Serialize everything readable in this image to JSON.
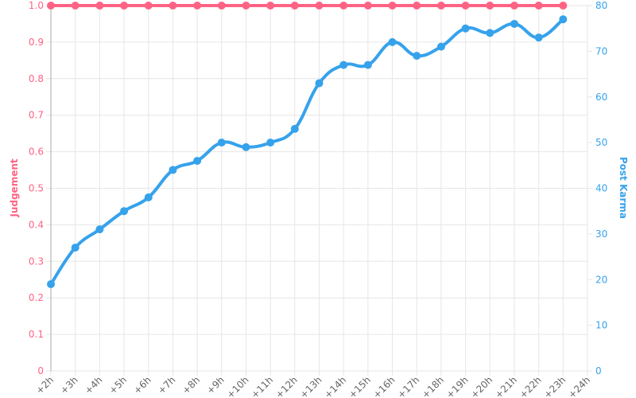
{
  "chart_data": {
    "type": "line",
    "categories": [
      "+2h",
      "+3h",
      "+4h",
      "+5h",
      "+6h",
      "+7h",
      "+8h",
      "+9h",
      "+10h",
      "+11h",
      "+12h",
      "+13h",
      "+14h",
      "+15h",
      "+16h",
      "+17h",
      "+18h",
      "+19h",
      "+20h",
      "+21h",
      "+22h",
      "+23h",
      "+24h"
    ],
    "y_label": "Judgement",
    "y2_label": "Post Karma",
    "series": [
      {
        "name": "Judgement",
        "color": "#ff6384",
        "values": [
          1,
          1,
          1,
          1,
          1,
          1,
          1,
          1,
          1,
          1,
          1,
          1,
          1,
          1,
          1,
          1,
          1,
          1,
          1,
          1,
          1,
          1,
          null
        ]
      },
      {
        "name": "Post Karma",
        "color": "#36a2eb",
        "axis": "y2",
        "values": [
          19,
          27,
          31,
          35,
          38,
          44,
          46,
          50,
          49,
          50,
          53,
          63,
          67,
          67,
          72,
          69,
          71,
          75,
          74,
          76,
          73,
          77,
          null
        ]
      }
    ],
    "ylim": [
      0,
      1
    ],
    "yticks": [
      0,
      0.1,
      0.2,
      0.3,
      0.4,
      0.5,
      0.6,
      0.7,
      0.8,
      0.9,
      {
        "value": 1,
        "label": "1.0"
      }
    ],
    "y2lim": [
      0,
      80
    ],
    "y2ticks": [
      0,
      10,
      20,
      30,
      40,
      50,
      60,
      70,
      80
    ],
    "grid": true
  }
}
